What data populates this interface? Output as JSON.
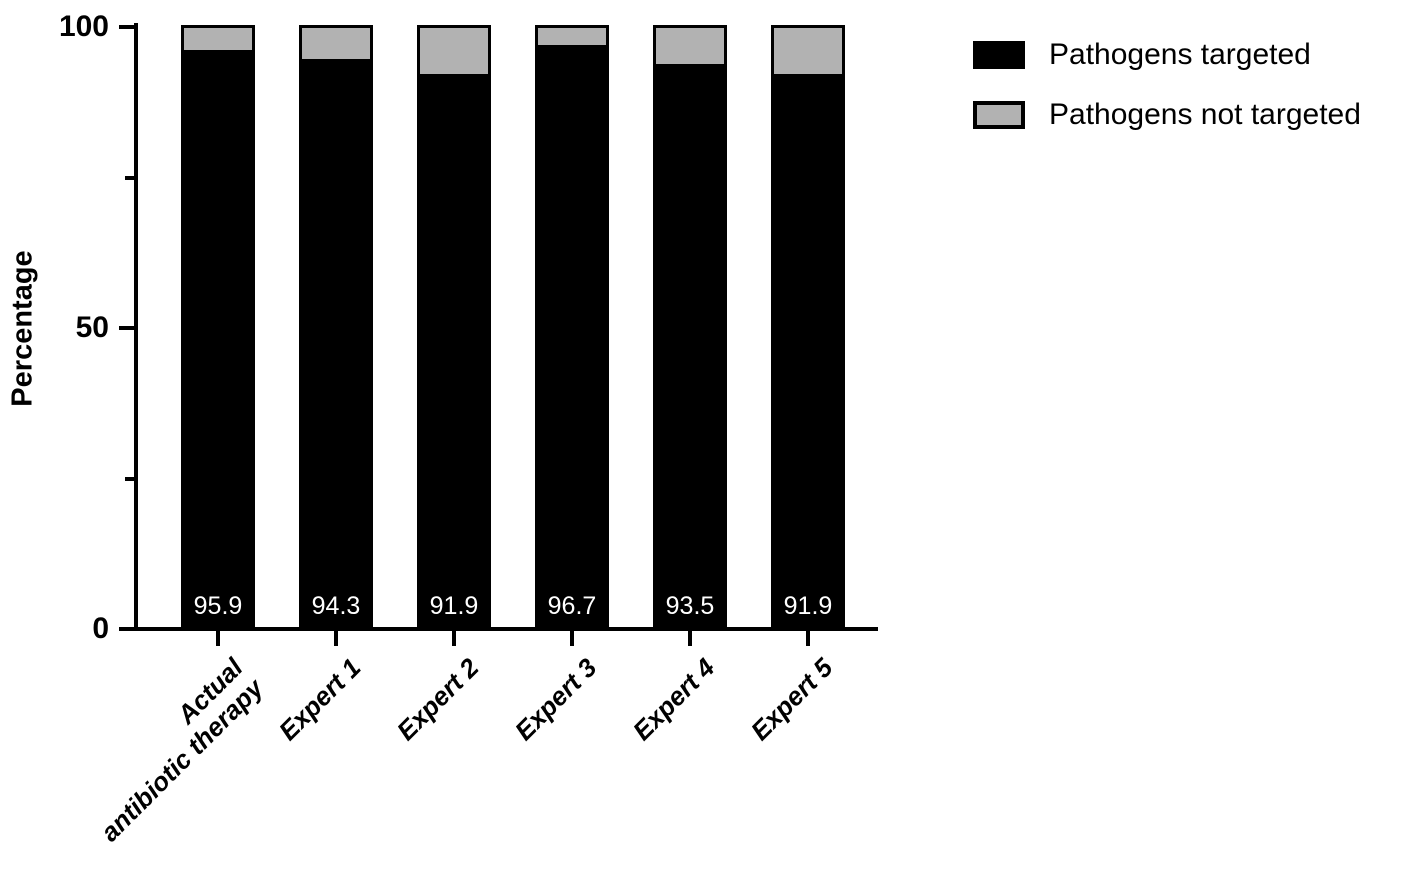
{
  "chart_data": {
    "type": "bar",
    "stacked": true,
    "title": "",
    "xlabel": "",
    "ylabel": "Percentage",
    "ylim": [
      0,
      100
    ],
    "yticks_major": [
      0,
      50,
      100
    ],
    "yticks_minor": [
      25,
      75
    ],
    "grid": false,
    "legend_position": "top-right",
    "categories": [
      {
        "lines": [
          "Actual",
          "antibiotic therapy"
        ]
      },
      {
        "lines": [
          "Expert 1"
        ]
      },
      {
        "lines": [
          "Expert 2"
        ]
      },
      {
        "lines": [
          "Expert 3"
        ]
      },
      {
        "lines": [
          "Expert 4"
        ]
      },
      {
        "lines": [
          "Expert 5"
        ]
      }
    ],
    "series": [
      {
        "name": "Pathogens targeted",
        "color": "#000000",
        "values": [
          95.9,
          94.3,
          91.9,
          96.7,
          93.5,
          91.9
        ]
      },
      {
        "name": "Pathogens not targeted",
        "color": "#b2b2b2",
        "values": [
          4.1,
          5.7,
          8.1,
          3.3,
          6.5,
          8.1
        ]
      }
    ],
    "bar_value_labels": [
      "95.9",
      "94.3",
      "91.9",
      "96.7",
      "93.5",
      "91.9"
    ],
    "bar_value_label_color": "#ffffff",
    "axis_color": "#000000"
  }
}
